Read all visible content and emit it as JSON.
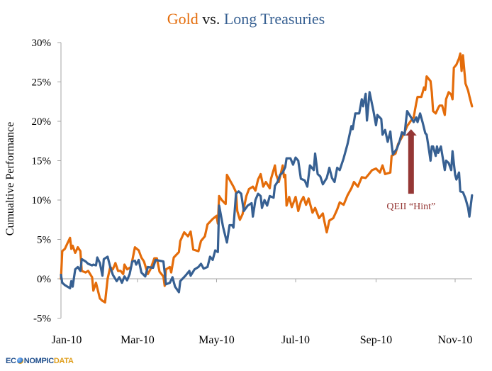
{
  "chart_data": {
    "type": "line",
    "title_parts": [
      {
        "text": "Gold",
        "color": "#E46C0A"
      },
      {
        "text": " vs. ",
        "color": "#1a1a1a"
      },
      {
        "text": "Long Treasuries",
        "color": "#376092"
      }
    ],
    "title": "Gold vs. Long Treasuries",
    "xlabel": "",
    "ylabel": "Cumualtive Performance",
    "x_unit": "days since 2010-01-01",
    "xlim": [
      0,
      318
    ],
    "ylim": [
      -5,
      30
    ],
    "y_ticks": [
      -5,
      0,
      5,
      10,
      15,
      20,
      25,
      30
    ],
    "y_tick_labels": [
      "-5%",
      "0%",
      "5%",
      "10%",
      "15%",
      "20%",
      "25%",
      "30%"
    ],
    "x_ticks": [
      0,
      59,
      120,
      181,
      243,
      304
    ],
    "x_tick_labels": [
      "Jan-10",
      "Mar-10",
      "May-10",
      "Jul-10",
      "Sep-10",
      "Nov-10"
    ],
    "grid": false,
    "legend": "none (title colored by series)",
    "series": [
      {
        "name": "Gold",
        "color": "#E46C0A",
        "points": [
          [
            0,
            0
          ],
          [
            1,
            3.5
          ],
          [
            3,
            3.8
          ],
          [
            5,
            4.5
          ],
          [
            7,
            5.2
          ],
          [
            8,
            3.8
          ],
          [
            9,
            4.2
          ],
          [
            11,
            3.3
          ],
          [
            13,
            4
          ],
          [
            15,
            3.5
          ],
          [
            16,
            1
          ],
          [
            19,
            0.8
          ],
          [
            21,
            1
          ],
          [
            24,
            0.2
          ],
          [
            25,
            -1.5
          ],
          [
            27,
            -0.5
          ],
          [
            30,
            -2.5
          ],
          [
            32,
            -2.8
          ],
          [
            34,
            -3
          ],
          [
            36,
            0
          ],
          [
            38,
            1.5
          ],
          [
            40,
            1.2
          ],
          [
            42,
            2
          ],
          [
            44,
            1
          ],
          [
            46,
            1
          ],
          [
            48,
            0.6
          ],
          [
            49,
            1.8
          ],
          [
            51,
            1.2
          ],
          [
            54,
            1.5
          ],
          [
            57,
            4
          ],
          [
            60,
            3.6
          ],
          [
            62,
            2.7
          ],
          [
            64,
            2.2
          ],
          [
            67,
            0.6
          ],
          [
            69,
            1.2
          ],
          [
            72,
            2.6
          ],
          [
            74,
            2.6
          ],
          [
            76,
            0.9
          ],
          [
            79,
            0.3
          ],
          [
            80,
            -0.9
          ],
          [
            81,
            1.2
          ],
          [
            84,
            1.5
          ],
          [
            85,
            0.8
          ],
          [
            87,
            2.7
          ],
          [
            91,
            3.4
          ],
          [
            92,
            4.8
          ],
          [
            95,
            5.9
          ],
          [
            98,
            5.4
          ],
          [
            100,
            6
          ],
          [
            102,
            3.7
          ],
          [
            106,
            3.5
          ],
          [
            108,
            4.8
          ],
          [
            111,
            5.4
          ],
          [
            113,
            6.9
          ],
          [
            117,
            7.6
          ],
          [
            120,
            8
          ],
          [
            121,
            7
          ],
          [
            122,
            10.5
          ],
          [
            124,
            10
          ],
          [
            127,
            9.5
          ],
          [
            128,
            13.2
          ],
          [
            131,
            12.3
          ],
          [
            133,
            11.7
          ],
          [
            135,
            11
          ],
          [
            136,
            8.6
          ],
          [
            138,
            7.5
          ],
          [
            140,
            8.2
          ],
          [
            143,
            10.5
          ],
          [
            145,
            11.4
          ],
          [
            148,
            11.7
          ],
          [
            150,
            11.2
          ],
          [
            152,
            12.6
          ],
          [
            154,
            13.3
          ],
          [
            156,
            11.7
          ],
          [
            158,
            12.3
          ],
          [
            161,
            11.5
          ],
          [
            162,
            12.7
          ],
          [
            165,
            14.4
          ],
          [
            166,
            13.2
          ],
          [
            168,
            12.3
          ],
          [
            171,
            14.4
          ],
          [
            172,
            12.9
          ],
          [
            173,
            13.2
          ],
          [
            174,
            9.3
          ],
          [
            176,
            10.4
          ],
          [
            178,
            9.1
          ],
          [
            181,
            10.4
          ],
          [
            183,
            8.6
          ],
          [
            185,
            9.8
          ],
          [
            187,
            10.4
          ],
          [
            189,
            9.4
          ],
          [
            191,
            10.2
          ],
          [
            194,
            8.4
          ],
          [
            196,
            9
          ],
          [
            199,
            7.7
          ],
          [
            202,
            8.3
          ],
          [
            203,
            7.4
          ],
          [
            205,
            5.9
          ],
          [
            207,
            7.4
          ],
          [
            210,
            7.7
          ],
          [
            213,
            8.8
          ],
          [
            215,
            9.7
          ],
          [
            218,
            9.4
          ],
          [
            221,
            10.6
          ],
          [
            224,
            11.5
          ],
          [
            226,
            12.3
          ],
          [
            229,
            11.7
          ],
          [
            232,
            12.9
          ],
          [
            235,
            12.8
          ],
          [
            237,
            13.2
          ],
          [
            240,
            13.8
          ],
          [
            243,
            14
          ],
          [
            246,
            13.5
          ],
          [
            248,
            14.4
          ],
          [
            250,
            13.3
          ],
          [
            254,
            13.5
          ],
          [
            255,
            15.6
          ],
          [
            258,
            15.9
          ],
          [
            260,
            17.1
          ],
          [
            263,
            18
          ],
          [
            265,
            18.6
          ],
          [
            267,
            19.4
          ],
          [
            270,
            20.1
          ],
          [
            272,
            20.5
          ],
          [
            274,
            22.3
          ],
          [
            275,
            23.1
          ],
          [
            278,
            23.1
          ],
          [
            280,
            24.3
          ],
          [
            281,
            24
          ],
          [
            282,
            25.7
          ],
          [
            285,
            25.1
          ],
          [
            286,
            23.7
          ],
          [
            287,
            21.3
          ],
          [
            289,
            21
          ],
          [
            291,
            21.7
          ],
          [
            292,
            22
          ],
          [
            294,
            22
          ],
          [
            296,
            20.8
          ],
          [
            297,
            22.8
          ],
          [
            299,
            23.7
          ],
          [
            301,
            23.4
          ],
          [
            302,
            22.8
          ],
          [
            303,
            26.8
          ],
          [
            305,
            27.2
          ],
          [
            307,
            28
          ],
          [
            308,
            28.6
          ],
          [
            309,
            26.4
          ],
          [
            310,
            28.4
          ],
          [
            312,
            24.8
          ],
          [
            314,
            23.9
          ],
          [
            315,
            23.2
          ],
          [
            317,
            21.9
          ]
        ]
      },
      {
        "name": "Long Treasuries",
        "color": "#376092",
        "points": [
          [
            0,
            0.5
          ],
          [
            1,
            -0.5
          ],
          [
            3,
            -0.8
          ],
          [
            5,
            -1
          ],
          [
            7,
            -1.2
          ],
          [
            8,
            -0.3
          ],
          [
            9,
            -1
          ],
          [
            11,
            1.2
          ],
          [
            13,
            1.5
          ],
          [
            15,
            1
          ],
          [
            16,
            2.5
          ],
          [
            19,
            2.2
          ],
          [
            21,
            1.9
          ],
          [
            24,
            1.7
          ],
          [
            25,
            1.8
          ],
          [
            27,
            1.7
          ],
          [
            28,
            2.7
          ],
          [
            30,
            2
          ],
          [
            32,
            0.4
          ],
          [
            33,
            2.5
          ],
          [
            35,
            2.7
          ],
          [
            36,
            2.8
          ],
          [
            38,
            1.5
          ],
          [
            40,
            0.5
          ],
          [
            43,
            -0.3
          ],
          [
            45,
            0.2
          ],
          [
            47,
            -0.5
          ],
          [
            49,
            0.3
          ],
          [
            51,
            -0.2
          ],
          [
            53,
            0.6
          ],
          [
            55,
            2.2
          ],
          [
            57,
            2.3
          ],
          [
            58,
            1.8
          ],
          [
            60,
            2.4
          ],
          [
            62,
            0.8
          ],
          [
            65,
            0.3
          ],
          [
            67,
            1.5
          ],
          [
            71,
            1.4
          ],
          [
            73,
            2.4
          ],
          [
            79,
            2.2
          ],
          [
            80,
            0.8
          ],
          [
            81,
            -0.7
          ],
          [
            84,
            -0.5
          ],
          [
            86,
            0.2
          ],
          [
            88,
            -1
          ],
          [
            91,
            -1.7
          ],
          [
            92,
            -0.3
          ],
          [
            96,
            0.4
          ],
          [
            99,
            1
          ],
          [
            100,
            0.4
          ],
          [
            103,
            1.2
          ],
          [
            106,
            1.5
          ],
          [
            108,
            1.9
          ],
          [
            110,
            1.3
          ],
          [
            113,
            1.5
          ],
          [
            115,
            2.8
          ],
          [
            117,
            2.4
          ],
          [
            119,
            3.6
          ],
          [
            121,
            3.4
          ],
          [
            122,
            9.3
          ],
          [
            125,
            6.6
          ],
          [
            128,
            4.6
          ],
          [
            130,
            6.8
          ],
          [
            132,
            6.8
          ],
          [
            133,
            6.5
          ],
          [
            135,
            10.8
          ],
          [
            137,
            11.1
          ],
          [
            139,
            10.8
          ],
          [
            141,
            8.6
          ],
          [
            144,
            9.3
          ],
          [
            147,
            9.6
          ],
          [
            148,
            7.9
          ],
          [
            150,
            10
          ],
          [
            152,
            10.8
          ],
          [
            154,
            10.5
          ],
          [
            155,
            9
          ],
          [
            157,
            10
          ],
          [
            159,
            9.3
          ],
          [
            161,
            10.5
          ],
          [
            164,
            10.3
          ],
          [
            165,
            11.8
          ],
          [
            167,
            12.3
          ],
          [
            169,
            13.2
          ],
          [
            171,
            13.5
          ],
          [
            173,
            14.2
          ],
          [
            174,
            15.3
          ],
          [
            177,
            15.3
          ],
          [
            179,
            14.5
          ],
          [
            181,
            15.4
          ],
          [
            183,
            15
          ],
          [
            185,
            12.7
          ],
          [
            188,
            12.5
          ],
          [
            190,
            11.7
          ],
          [
            192,
            14.4
          ],
          [
            195,
            13.8
          ],
          [
            196,
            15.9
          ],
          [
            198,
            13.3
          ],
          [
            200,
            13
          ],
          [
            202,
            12
          ],
          [
            205,
            12.8
          ],
          [
            207,
            14.1
          ],
          [
            209,
            12.8
          ],
          [
            211,
            12.3
          ],
          [
            213,
            14.1
          ],
          [
            215,
            13.8
          ],
          [
            218,
            15.3
          ],
          [
            221,
            17.1
          ],
          [
            224,
            19.4
          ],
          [
            225,
            19
          ],
          [
            227,
            21
          ],
          [
            230,
            21
          ],
          [
            232,
            22.8
          ],
          [
            233,
            21.9
          ],
          [
            235,
            23.5
          ],
          [
            236,
            20.1
          ],
          [
            238,
            23.7
          ],
          [
            241,
            21.3
          ],
          [
            243,
            19.5
          ],
          [
            244,
            20.8
          ],
          [
            247,
            20.3
          ],
          [
            248,
            18.3
          ],
          [
            250,
            18.9
          ],
          [
            252,
            17.4
          ],
          [
            254,
            18.7
          ],
          [
            255,
            17.1
          ],
          [
            256,
            15.8
          ],
          [
            259,
            16.5
          ],
          [
            261,
            17.4
          ],
          [
            263,
            18.6
          ],
          [
            265,
            18.3
          ],
          [
            266,
            19.9
          ],
          [
            267,
            21.3
          ],
          [
            270,
            20.5
          ],
          [
            272,
            19.9
          ],
          [
            274,
            20.5
          ],
          [
            275,
            19.9
          ],
          [
            277,
            21
          ],
          [
            279,
            19.8
          ],
          [
            281,
            18.5
          ],
          [
            282,
            18.3
          ],
          [
            284,
            16.2
          ],
          [
            285,
            15
          ],
          [
            286,
            16.8
          ],
          [
            287,
            16.8
          ],
          [
            289,
            15.6
          ],
          [
            290,
            16.8
          ],
          [
            291,
            16
          ],
          [
            293,
            16.8
          ],
          [
            296,
            13.8
          ],
          [
            297,
            15
          ],
          [
            299,
            14.7
          ],
          [
            301,
            13.8
          ],
          [
            302,
            16.2
          ],
          [
            304,
            13.2
          ],
          [
            305,
            12.6
          ],
          [
            307,
            13.5
          ],
          [
            308,
            11.1
          ],
          [
            310,
            11
          ],
          [
            312,
            10.2
          ],
          [
            314,
            9
          ],
          [
            315,
            7.9
          ],
          [
            317,
            10.6
          ]
        ]
      }
    ],
    "annotations": [
      {
        "text": "QEII “Hint”",
        "color": "#953735",
        "arrow": true,
        "x": 270,
        "arrow_tip_y": 19.0,
        "arrow_base_y": 10.8
      }
    ]
  },
  "footer": {
    "logo_part1": "EC",
    "logo_part2": "NOMPIC",
    "logo_part3": "DATA"
  }
}
